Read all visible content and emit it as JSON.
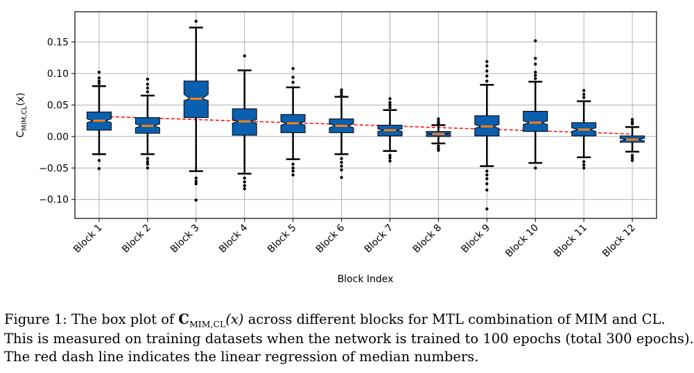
{
  "chart_data": {
    "type": "boxplot",
    "title": "",
    "xlabel": "Block Index",
    "ylabel": "C",
    "ylabel_sub": "MIM,CL",
    "ylabel_suffix": "(x)",
    "ylim": [
      -0.13,
      0.198
    ],
    "yticks": [
      -0.1,
      -0.05,
      0.0,
      0.05,
      0.1,
      0.15
    ],
    "ytick_labels": [
      "−0.10",
      "−0.05",
      "0.00",
      "0.05",
      "0.10",
      "0.15"
    ],
    "grid": true,
    "box_color": "#0a5fae",
    "median_color": "#ff7f0e",
    "regression_color": "#ff0000",
    "categories": [
      "Block 1",
      "Block 2",
      "Block 3",
      "Block 4",
      "Block 5",
      "Block 6",
      "Block 7",
      "Block 8",
      "Block 9",
      "Block 10",
      "Block 11",
      "Block 12"
    ],
    "boxes": [
      {
        "q1": 0.01,
        "median": 0.025,
        "q3": 0.039,
        "whisker_low": -0.028,
        "whisker_high": 0.08,
        "notch_low": 0.022,
        "notch_high": 0.028,
        "outliers": [
          -0.038,
          -0.051,
          0.084,
          0.088,
          0.093,
          0.102
        ]
      },
      {
        "q1": 0.005,
        "median": 0.017,
        "q3": 0.03,
        "whisker_low": -0.028,
        "whisker_high": 0.065,
        "notch_low": 0.014,
        "notch_high": 0.02,
        "outliers": [
          -0.035,
          -0.04,
          -0.044,
          -0.05,
          0.071,
          0.077,
          0.083,
          0.091
        ]
      },
      {
        "q1": 0.03,
        "median": 0.06,
        "q3": 0.088,
        "whisker_low": -0.055,
        "whisker_high": 0.173,
        "notch_low": 0.057,
        "notch_high": 0.067,
        "outliers": [
          -0.066,
          -0.071,
          -0.075,
          -0.101,
          0.183
        ]
      },
      {
        "q1": 0.002,
        "median": 0.024,
        "q3": 0.044,
        "whisker_low": -0.059,
        "whisker_high": 0.105,
        "notch_low": 0.021,
        "notch_high": 0.027,
        "outliers": [
          -0.066,
          -0.072,
          -0.078,
          -0.083,
          0.128
        ]
      },
      {
        "q1": 0.006,
        "median": 0.021,
        "q3": 0.035,
        "whisker_low": -0.036,
        "whisker_high": 0.078,
        "notch_low": 0.018,
        "notch_high": 0.024,
        "outliers": [
          -0.044,
          -0.05,
          -0.055,
          -0.061,
          0.086,
          0.094,
          0.108
        ]
      },
      {
        "q1": 0.006,
        "median": 0.017,
        "q3": 0.028,
        "whisker_low": -0.028,
        "whisker_high": 0.063,
        "notch_low": 0.014,
        "notch_high": 0.02,
        "outliers": [
          -0.035,
          -0.041,
          -0.047,
          -0.053,
          -0.065,
          0.066,
          0.07,
          0.074
        ]
      },
      {
        "q1": 0.001,
        "median": 0.01,
        "q3": 0.018,
        "whisker_low": -0.023,
        "whisker_high": 0.042,
        "notch_low": 0.008,
        "notch_high": 0.012,
        "outliers": [
          -0.03,
          -0.034,
          -0.039,
          0.046,
          0.05,
          0.054,
          0.06
        ]
      },
      {
        "q1": 0.0,
        "median": 0.004,
        "q3": 0.008,
        "whisker_low": -0.011,
        "whisker_high": 0.018,
        "notch_low": 0.003,
        "notch_high": 0.005,
        "outliers": [
          -0.015,
          -0.019,
          -0.022,
          0.021,
          0.024,
          0.028
        ]
      },
      {
        "q1": 0.001,
        "median": 0.016,
        "q3": 0.033,
        "whisker_low": -0.047,
        "whisker_high": 0.082,
        "notch_low": 0.013,
        "notch_high": 0.019,
        "outliers": [
          -0.055,
          -0.061,
          -0.067,
          -0.075,
          -0.085,
          -0.115,
          0.088,
          0.096,
          0.104,
          0.112,
          0.119
        ]
      },
      {
        "q1": 0.008,
        "median": 0.022,
        "q3": 0.04,
        "whisker_low": -0.042,
        "whisker_high": 0.087,
        "notch_low": 0.019,
        "notch_high": 0.025,
        "outliers": [
          -0.05,
          0.092,
          0.097,
          0.102,
          0.115,
          0.124,
          0.152
        ]
      },
      {
        "q1": 0.001,
        "median": 0.011,
        "q3": 0.022,
        "whisker_low": -0.033,
        "whisker_high": 0.056,
        "notch_low": 0.008,
        "notch_high": 0.014,
        "outliers": [
          -0.04,
          -0.045,
          -0.05,
          0.062,
          0.067,
          0.073
        ]
      },
      {
        "q1": -0.009,
        "median": -0.005,
        "q3": 0.001,
        "whisker_low": -0.024,
        "whisker_high": 0.015,
        "notch_low": -0.007,
        "notch_high": -0.003,
        "outliers": [
          -0.03,
          -0.034,
          -0.038,
          0.02,
          0.023,
          0.027
        ]
      }
    ],
    "regression": {
      "start": 0.032,
      "end": 0.004
    }
  },
  "caption": {
    "line1_prefix": "Figure 1: The box plot of ",
    "line1_symbol": "C",
    "line1_sub": "MIM,CL",
    "line1_arg": "(x)",
    "line1_suffix": " across different blocks for MTL combination of MIM and CL.",
    "line2": "This is measured on training datasets when the network is trained to 100 epochs (total 300 epochs).",
    "line3": "The red dash line indicates the linear regression of median numbers."
  }
}
